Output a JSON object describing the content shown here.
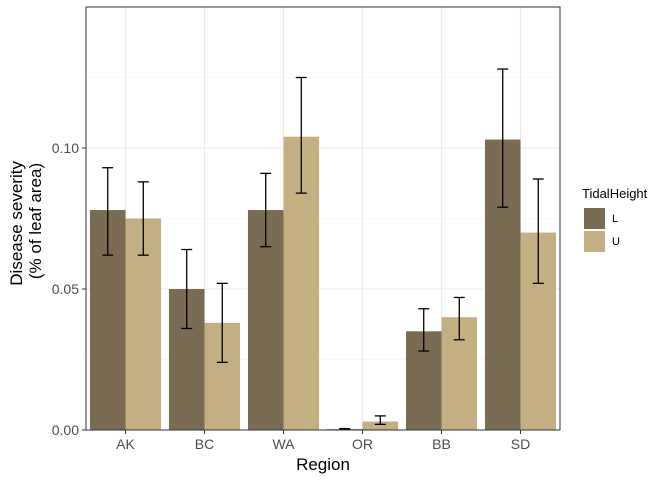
{
  "chart_data": {
    "type": "bar",
    "title": "",
    "xlabel": "Region",
    "ylabel_lines": [
      "Disease severity",
      "(% of leaf area)"
    ],
    "categories": [
      "AK",
      "BC",
      "WA",
      "OR",
      "BB",
      "SD"
    ],
    "ylim": [
      0,
      0.15
    ],
    "yticks": [
      0.0,
      0.05,
      0.1
    ],
    "ytick_labels": [
      "0.00",
      "0.05",
      "0.10"
    ],
    "grid": true,
    "legend": {
      "title": "TidalHeight",
      "position": "right"
    },
    "series": [
      {
        "name": "L",
        "color": "#7a6c52",
        "values": [
          0.078,
          0.05,
          0.078,
          0.0003,
          0.035,
          0.103
        ],
        "err_low": [
          0.062,
          0.036,
          0.065,
          0.0001,
          0.028,
          0.079
        ],
        "err_high": [
          0.093,
          0.064,
          0.091,
          0.0005,
          0.043,
          0.128
        ]
      },
      {
        "name": "U",
        "color": "#c4af83",
        "values": [
          0.075,
          0.038,
          0.104,
          0.003,
          0.04,
          0.07
        ],
        "err_low": [
          0.062,
          0.024,
          0.084,
          0.002,
          0.032,
          0.052
        ],
        "err_high": [
          0.088,
          0.052,
          0.125,
          0.005,
          0.047,
          0.089
        ]
      }
    ]
  }
}
